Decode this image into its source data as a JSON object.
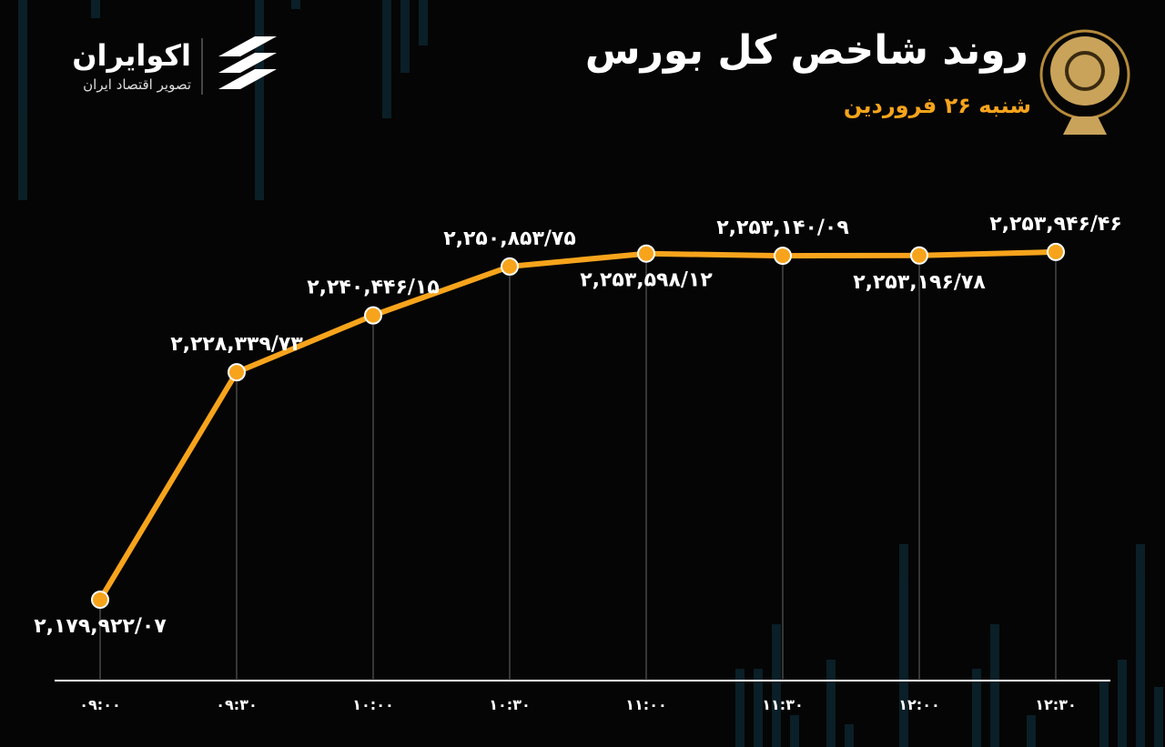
{
  "brand": {
    "name": "اکوایران",
    "tagline": "تصویر اقتصاد ایران"
  },
  "chart_data": {
    "type": "line",
    "title": "روند شاخص کل بورس",
    "subtitle": "شنبه ۲۶ فروردین",
    "categories": [
      "۰۹:۰۰",
      "۰۹:۳۰",
      "۱۰:۰۰",
      "۱۰:۳۰",
      "۱۱:۰۰",
      "۱۱:۳۰",
      "۱۲:۰۰",
      "۱۲:۳۰"
    ],
    "series": [
      {
        "color": "#f7a41c",
        "values": [
          2179922.07,
          2228339.73,
          2240446.15,
          2250853.75,
          2253598.12,
          2253140.09,
          2253196.78,
          2253946.46
        ],
        "value_labels": [
          "۲,۱۷۹,۹۲۲/۰۷",
          "۲,۲۲۸,۳۳۹/۷۳",
          "۲,۲۴۰,۴۴۶/۱۵",
          "۲,۲۵۰,۸۵۳/۷۵",
          "۲,۲۵۳,۵۹۸/۱۲",
          "۲,۲۵۳,۱۴۰/۰۹",
          "۲,۲۵۳,۱۹۶/۷۸",
          "۲,۲۵۳,۹۴۶/۴۶"
        ]
      }
    ],
    "ylim": [
      2162700,
      2261100
    ]
  }
}
